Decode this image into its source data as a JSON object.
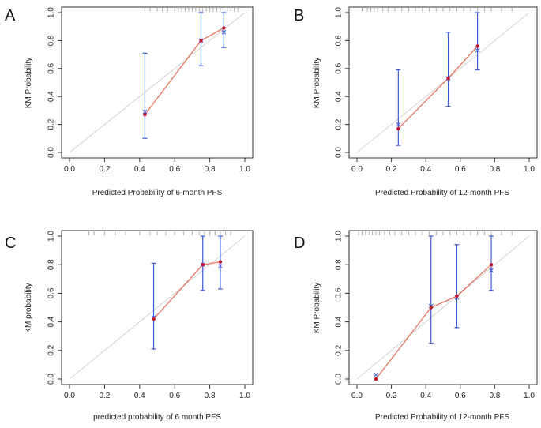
{
  "colors": {
    "curve": "#e8735a",
    "point": "#c0172e",
    "cross": "#4b5bd1",
    "errorbar": "#3a5bd9",
    "diagonal": "#c8c8c8",
    "rug": "#b0b0b0",
    "frame": "#333333"
  },
  "chart_data": [
    {
      "type": "scatter",
      "panel_label": "A",
      "xlabel": "Predicted Probability of 6-month PFS",
      "ylabel": "KM Probability",
      "xlim": [
        0,
        1
      ],
      "ylim": [
        0,
        1
      ],
      "xticks": [
        "0.0",
        "0.2",
        "0.4",
        "0.6",
        "0.8",
        "1.0"
      ],
      "yticks": [
        "0.0",
        "0.2",
        "0.4",
        "0.6",
        "0.8",
        "1.0"
      ],
      "points": [
        {
          "x": 0.43,
          "y": 0.27,
          "cross": 0.29,
          "lo": 0.1,
          "hi": 0.71
        },
        {
          "x": 0.75,
          "y": 0.8,
          "cross": 0.8,
          "lo": 0.62,
          "hi": 1.0
        },
        {
          "x": 0.88,
          "y": 0.89,
          "cross": 0.86,
          "lo": 0.75,
          "hi": 1.0
        }
      ],
      "rug": [
        0.43,
        0.46,
        0.5,
        0.53,
        0.56,
        0.6,
        0.62,
        0.64,
        0.66,
        0.68,
        0.7,
        0.72,
        0.74,
        0.75,
        0.76,
        0.78,
        0.8,
        0.82,
        0.84,
        0.86,
        0.88,
        0.9,
        0.92,
        0.94,
        0.96
      ]
    },
    {
      "type": "scatter",
      "panel_label": "B",
      "xlabel": "Predicted Probability of 12-month PFS",
      "ylabel": "KM Probability",
      "xlim": [
        0,
        1
      ],
      "ylim": [
        0,
        1
      ],
      "xticks": [
        "0.0",
        "0.2",
        "0.4",
        "0.6",
        "0.8",
        "1.0"
      ],
      "yticks": [
        "0.0",
        "0.2",
        "0.4",
        "0.6",
        "0.8",
        "1.0"
      ],
      "points": [
        {
          "x": 0.24,
          "y": 0.17,
          "cross": 0.2,
          "lo": 0.05,
          "hi": 0.59
        },
        {
          "x": 0.53,
          "y": 0.53,
          "cross": 0.53,
          "lo": 0.33,
          "hi": 0.86
        },
        {
          "x": 0.7,
          "y": 0.76,
          "cross": 0.73,
          "lo": 0.59,
          "hi": 1.0
        }
      ],
      "rug": [
        0.03,
        0.06,
        0.08,
        0.1,
        0.12,
        0.15,
        0.18,
        0.22,
        0.26,
        0.3,
        0.34,
        0.38,
        0.42,
        0.46,
        0.5,
        0.54,
        0.58,
        0.62,
        0.66,
        0.7,
        0.74,
        0.78,
        0.84,
        0.9
      ]
    },
    {
      "type": "scatter",
      "panel_label": "C",
      "xlabel": "predicted probability of 6 month PFS",
      "ylabel": "KM probability",
      "xlim": [
        0,
        1
      ],
      "ylim": [
        0,
        1
      ],
      "xticks": [
        "0.0",
        "0.2",
        "0.4",
        "0.6",
        "0.8",
        "1.0"
      ],
      "yticks": [
        "0.0",
        "0.2",
        "0.4",
        "0.6",
        "0.8",
        "1.0"
      ],
      "points": [
        {
          "x": 0.48,
          "y": 0.42,
          "cross": 0.43,
          "lo": 0.21,
          "hi": 0.81
        },
        {
          "x": 0.76,
          "y": 0.8,
          "cross": 0.8,
          "lo": 0.62,
          "hi": 1.0
        },
        {
          "x": 0.86,
          "y": 0.82,
          "cross": 0.79,
          "lo": 0.63,
          "hi": 1.0
        }
      ],
      "rug": [
        0.11,
        0.14,
        0.2,
        0.26,
        0.32,
        0.4,
        0.46,
        0.5,
        0.55,
        0.6,
        0.65,
        0.7,
        0.74,
        0.77,
        0.8,
        0.83,
        0.86,
        0.89,
        0.92
      ]
    },
    {
      "type": "scatter",
      "panel_label": "D",
      "xlabel": "Predicted Probability of 12-month PFS",
      "ylabel": "KM Probability",
      "xlim": [
        0,
        1
      ],
      "ylim": [
        0,
        1
      ],
      "xticks": [
        "0.0",
        "0.2",
        "0.4",
        "0.6",
        "0.8",
        "1.0"
      ],
      "yticks": [
        "0.0",
        "0.2",
        "0.4",
        "0.6",
        "0.8",
        "1.0"
      ],
      "points": [
        {
          "x": 0.11,
          "y": 0.0,
          "cross": 0.03,
          "lo": 0.0,
          "hi": 0.0
        },
        {
          "x": 0.43,
          "y": 0.5,
          "cross": 0.51,
          "lo": 0.25,
          "hi": 1.0
        },
        {
          "x": 0.58,
          "y": 0.58,
          "cross": 0.57,
          "lo": 0.36,
          "hi": 0.94
        },
        {
          "x": 0.78,
          "y": 0.8,
          "cross": 0.76,
          "lo": 0.62,
          "hi": 1.0
        }
      ],
      "rug": [
        0.01,
        0.03,
        0.05,
        0.07,
        0.09,
        0.11,
        0.13,
        0.16,
        0.19,
        0.22,
        0.26,
        0.3,
        0.34,
        0.38,
        0.42,
        0.46,
        0.5,
        0.54,
        0.58,
        0.62,
        0.66,
        0.7,
        0.74,
        0.78,
        0.84,
        0.9
      ]
    }
  ]
}
